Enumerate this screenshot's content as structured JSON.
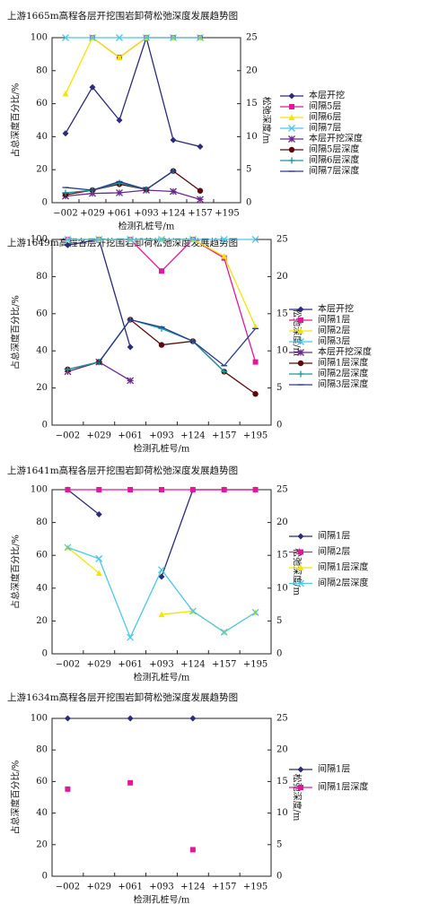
{
  "chart_data": [
    {
      "type": "line",
      "title": "上游1665m高程各层开挖围岩卸荷松弛深度发展趋势图",
      "x_label": "检测孔桩号/m",
      "y_label": "占总深度百分比/%",
      "y2_label": "松弛深度/m",
      "categories": [
        "−002",
        "+029",
        "+061",
        "+093",
        "+124",
        "+157",
        "+195"
      ],
      "ylim": [
        0,
        100
      ],
      "yticks": [
        0,
        20,
        40,
        60,
        80,
        100
      ],
      "y2lim": [
        0,
        25
      ],
      "y2ticks": [
        0,
        5,
        10,
        15,
        20,
        25
      ],
      "series": [
        {
          "name": "本层开挖",
          "color": "#2b2b78",
          "marker": "diamond",
          "values": [
            42,
            70,
            50,
            100,
            38,
            34,
            null
          ]
        },
        {
          "name": "间隔5层",
          "color": "#e0189a",
          "marker": "square",
          "values": [
            null,
            100,
            88,
            100,
            100,
            100,
            null
          ]
        },
        {
          "name": "间隔6层",
          "color": "#f2e600",
          "marker": "triangle",
          "values": [
            66,
            100,
            88,
            100,
            100,
            100,
            null
          ]
        },
        {
          "name": "间隔7层",
          "color": "#4cc8e8",
          "marker": "x",
          "values": [
            100,
            100,
            100,
            100,
            100,
            100,
            null
          ]
        },
        {
          "name": "本层开挖深度",
          "color": "#6a2a8a",
          "marker": "star",
          "axis": "y2",
          "values": [
            1.0,
            1.4,
            1.5,
            1.9,
            1.7,
            0.5,
            null
          ]
        },
        {
          "name": "间隔5层深度",
          "color": "#5a0a0a",
          "marker": "circle",
          "axis": "y2",
          "values": [
            1.2,
            1.9,
            2.8,
            2.0,
            4.8,
            1.8,
            null
          ]
        },
        {
          "name": "间隔6层深度",
          "color": "#1a9a9a",
          "marker": "plus",
          "axis": "y2",
          "values": [
            1.5,
            1.9,
            3.0,
            2.0,
            4.8,
            null,
            null
          ]
        },
        {
          "name": "间隔7层深度",
          "color": "#2a3a8a",
          "marker": "dash",
          "axis": "y2",
          "values": [
            2.3,
            1.9,
            3.2,
            2.0,
            4.8,
            null,
            null
          ]
        }
      ]
    },
    {
      "type": "line",
      "title": "上游1649m高程各层开挖围岩卸荷松弛深度发展趋势图",
      "x_label": "检测孔桩号/m",
      "y_label": "占总深度百分比/%",
      "y2_label": "松弛深度/m",
      "categories": [
        "−002",
        "+029",
        "+061",
        "+093",
        "+124",
        "+157",
        "+195"
      ],
      "ylim": [
        0,
        100
      ],
      "yticks": [
        0,
        20,
        40,
        60,
        80,
        100
      ],
      "y2lim": [
        0,
        25
      ],
      "y2ticks": [
        0,
        5,
        10,
        15,
        20,
        25
      ],
      "series": [
        {
          "name": "本层开挖",
          "color": "#2b2b78",
          "marker": "diamond",
          "values": [
            97,
            100,
            42,
            null,
            null,
            null,
            null
          ]
        },
        {
          "name": "间隔1层",
          "color": "#e0189a",
          "marker": "square",
          "values": [
            100,
            100,
            100,
            83,
            100,
            90,
            34
          ]
        },
        {
          "name": "间隔2层",
          "color": "#f2e600",
          "marker": "triangle",
          "values": [
            100,
            100,
            100,
            100,
            100,
            91,
            53
          ]
        },
        {
          "name": "间隔3层",
          "color": "#4cc8e8",
          "marker": "x",
          "values": [
            100,
            100,
            100,
            100,
            100,
            100,
            100
          ]
        },
        {
          "name": "本层开挖深度",
          "color": "#6a2a8a",
          "marker": "star",
          "axis": "y2",
          "values": [
            7.2,
            8.5,
            6.0,
            null,
            null,
            null,
            null
          ]
        },
        {
          "name": "间隔1层深度",
          "color": "#5a0a0a",
          "marker": "circle",
          "axis": "y2",
          "values": [
            7.5,
            8.5,
            14.2,
            10.8,
            11.3,
            7.2,
            4.2
          ]
        },
        {
          "name": "间隔2层深度",
          "color": "#1a9a9a",
          "marker": "plus",
          "axis": "y2",
          "values": [
            7.5,
            8.5,
            14.2,
            13.0,
            11.3,
            7.2,
            null
          ]
        },
        {
          "name": "间隔3层深度",
          "color": "#2a3a8a",
          "marker": "dash",
          "axis": "y2",
          "values": [
            null,
            8.5,
            14.2,
            13.2,
            11.3,
            8.0,
            13.0
          ]
        }
      ]
    },
    {
      "type": "line",
      "title": "上游1641m高程各层开挖围岩卸荷松弛深度发展趋势图",
      "x_label": "检测孔桩号/m",
      "y_label": "占总深度百分比/%",
      "y2_label": "松弛深度/m",
      "categories": [
        "−002",
        "+029",
        "+061",
        "+093",
        "+124",
        "+157",
        "+195"
      ],
      "ylim": [
        0,
        100
      ],
      "yticks": [
        0,
        20,
        40,
        60,
        80,
        100
      ],
      "y2lim": [
        0,
        25
      ],
      "y2ticks": [
        0,
        5,
        10,
        15,
        20,
        25
      ],
      "series": [
        {
          "name": "间隔1层",
          "color": "#2b2b78",
          "marker": "diamond",
          "values": [
            100,
            85,
            null,
            47,
            100,
            100,
            100
          ]
        },
        {
          "name": "间隔2层",
          "color": "#e0189a",
          "marker": "square",
          "values": [
            100,
            100,
            100,
            100,
            100,
            100,
            100
          ]
        },
        {
          "name": "间隔1层深度",
          "color": "#f2e600",
          "marker": "triangle",
          "axis": "y2",
          "values": [
            16.2,
            12.3,
            null,
            6.0,
            6.5,
            3.3,
            6.3
          ]
        },
        {
          "name": "间隔2层深度",
          "color": "#4cc8e8",
          "marker": "x",
          "axis": "y2",
          "values": [
            16.2,
            14.5,
            2.5,
            12.8,
            6.5,
            3.3,
            6.3
          ]
        }
      ]
    },
    {
      "type": "line",
      "title": "上游1634m高程各层开挖围岩卸荷松弛深度发展趋势图",
      "x_label": "检测孔桩号/m",
      "y_label": "占总深度百分比/%",
      "y2_label": "松弛深度/m",
      "categories": [
        "−002",
        "+029",
        "+061",
        "+093",
        "+124",
        "+157",
        "+195"
      ],
      "ylim": [
        0,
        100
      ],
      "yticks": [
        0,
        20,
        40,
        60,
        80,
        100
      ],
      "y2lim": [
        0,
        25
      ],
      "y2ticks": [
        0,
        5,
        10,
        15,
        20,
        25
      ],
      "series": [
        {
          "name": "间隔1层",
          "color": "#2b2b78",
          "marker": "diamond",
          "values": [
            100,
            null,
            100,
            null,
            100,
            null,
            null
          ]
        },
        {
          "name": "间隔1层深度",
          "color": "#e0189a",
          "marker": "square",
          "axis": "y2",
          "line": false,
          "values": [
            13.8,
            null,
            14.8,
            null,
            4.2,
            null,
            null
          ]
        }
      ]
    }
  ]
}
